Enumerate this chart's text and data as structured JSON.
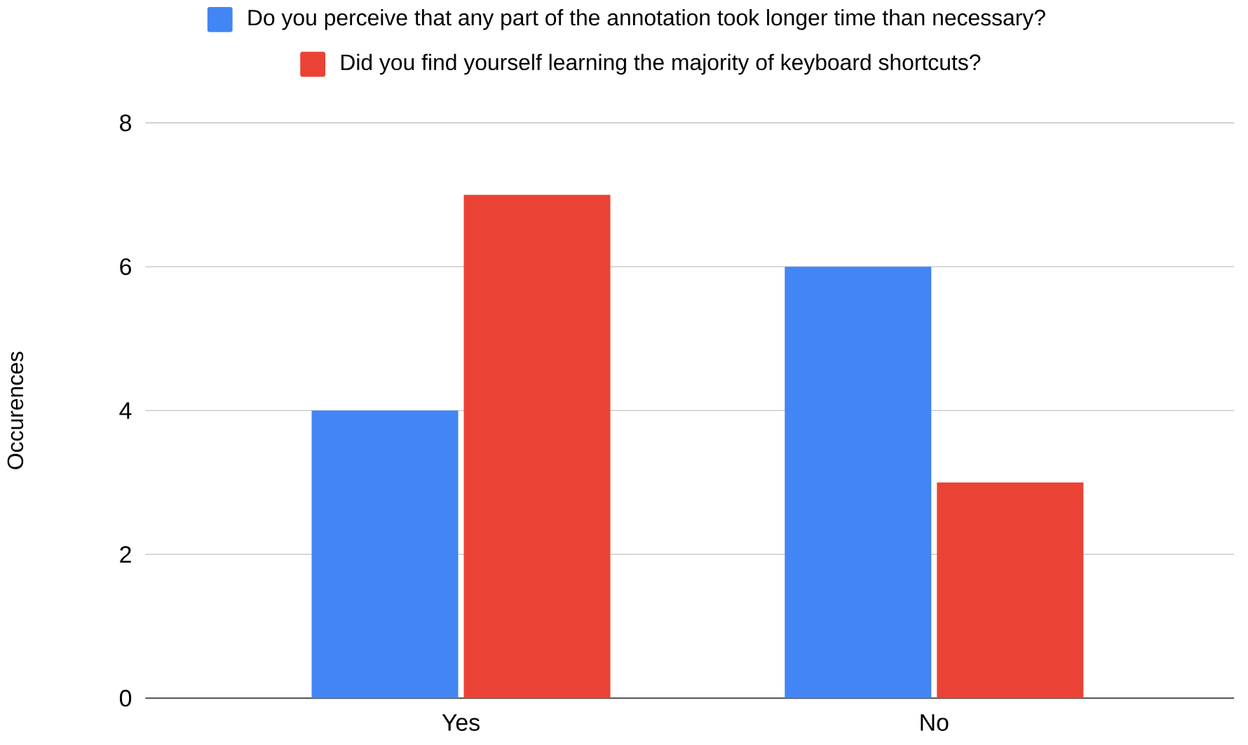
{
  "chart_data": {
    "type": "bar",
    "categories": [
      "Yes",
      "No"
    ],
    "ylabel": "Occurences",
    "series": [
      {
        "name": "Do you perceive that any part of the annotation took longer time than necessary?",
        "color": "#4285f4",
        "values": [
          4,
          6
        ]
      },
      {
        "name": "Did you find yourself learning the majority of keyboard shortcuts?",
        "color": "#ea4335",
        "values": [
          7,
          3
        ]
      }
    ],
    "ylim": [
      0,
      8
    ],
    "yticks": [
      0,
      2,
      4,
      6,
      8
    ],
    "grid": "y",
    "legend": "top"
  }
}
